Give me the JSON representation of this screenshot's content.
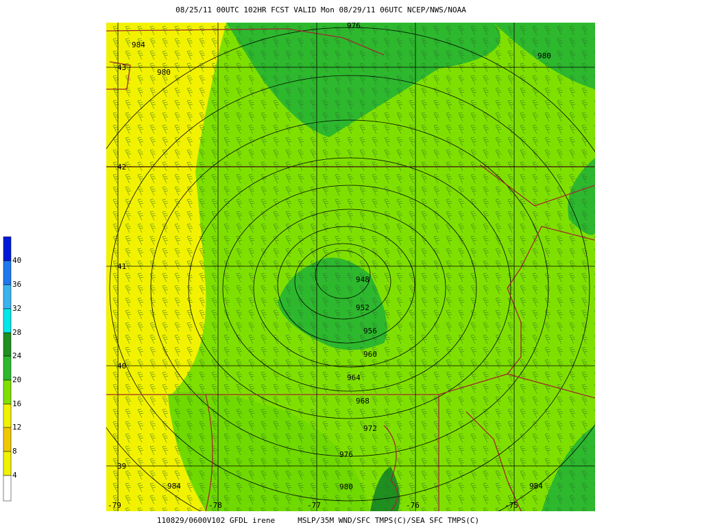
{
  "header": {
    "title": "08/25/11 00UTC  102HR  FCST VALID Mon 08/29/11 06UTC  NCEP/NWS/NOAA"
  },
  "footer": {
    "text": "110829/0600V102 GFDL irene     MSLP/35M WND/SFC TMPS(C)/SEA SFC TMPS(C)"
  },
  "colorbar": {
    "labels": [
      4,
      8,
      12,
      16,
      20,
      24,
      28,
      32,
      36,
      40
    ]
  },
  "lat_labels": [
    43,
    42,
    41,
    40,
    39
  ],
  "lon_labels": [
    -79,
    -78,
    -77,
    -76,
    -75
  ],
  "isobar_labels": [
    976,
    984,
    980,
    980,
    948,
    952,
    956,
    960,
    964,
    968,
    972,
    976,
    980,
    984,
    984
  ]
}
